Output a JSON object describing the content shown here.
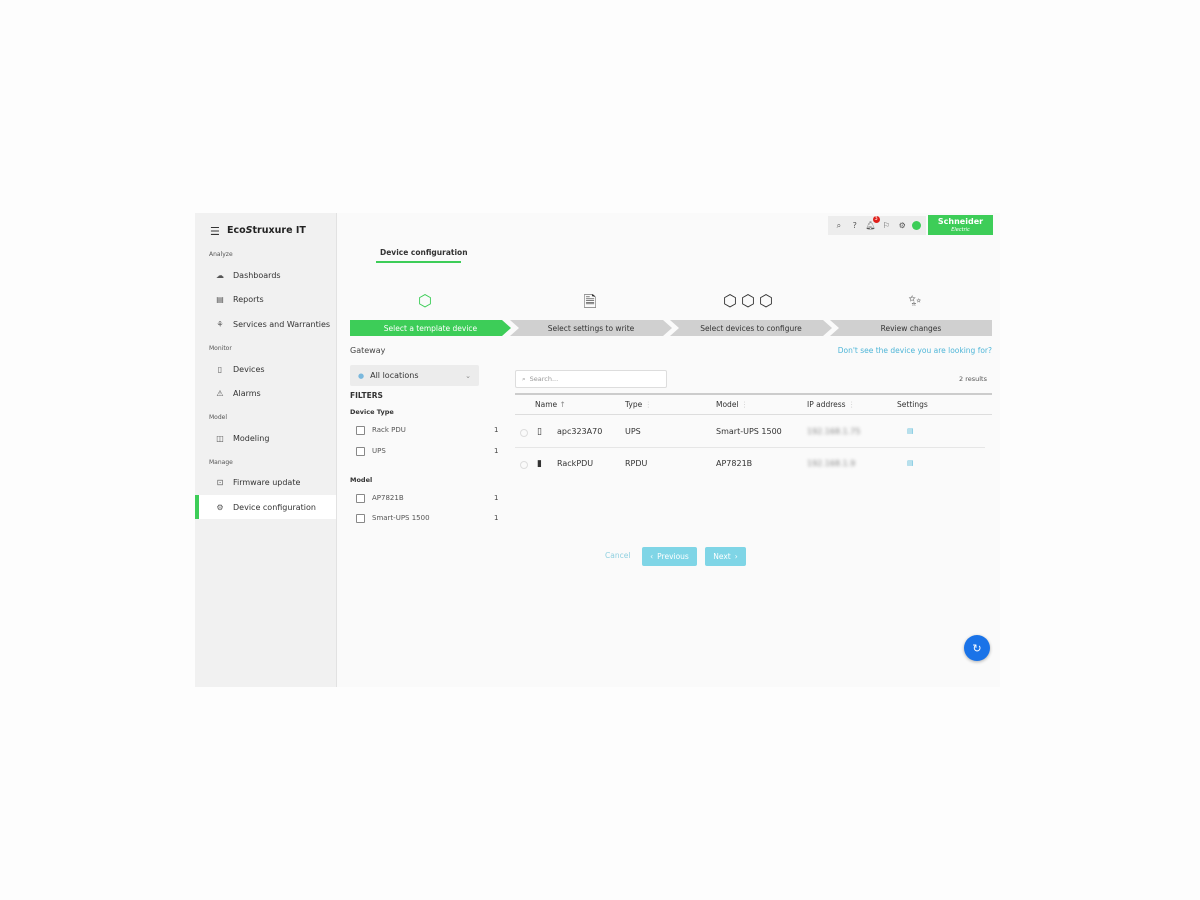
{
  "app": {
    "brand": "EcoStruxure IT",
    "brand_left": "Eco",
    "brand_right": "truxure IT",
    "logo": "Schneider",
    "logo_sub": "Electric",
    "accent": "#3dcd58",
    "link_color": "#4fb6d8"
  },
  "sidebar": {
    "sections": [
      {
        "label": "Analyze",
        "items": [
          {
            "label": "Dashboards",
            "icon": "cloud-icon"
          },
          {
            "label": "Reports",
            "icon": "report-icon"
          },
          {
            "label": "Services and Warranties",
            "icon": "services-icon"
          }
        ]
      },
      {
        "label": "Monitor",
        "items": [
          {
            "label": "Devices",
            "icon": "device-icon"
          },
          {
            "label": "Alarms",
            "icon": "warning-icon"
          }
        ]
      },
      {
        "label": "Model",
        "items": [
          {
            "label": "Modeling",
            "icon": "modeling-icon"
          }
        ]
      },
      {
        "label": "Manage",
        "items": [
          {
            "label": "Firmware update",
            "icon": "firmware-icon"
          },
          {
            "label": "Device configuration",
            "icon": "config-icon",
            "active": true
          }
        ]
      }
    ]
  },
  "topbar": {
    "notification_count": "3"
  },
  "page": {
    "tab": "Device configuration"
  },
  "steps": [
    {
      "label": "Select a template device",
      "active": true
    },
    {
      "label": "Select settings to write"
    },
    {
      "label": "Select devices to configure"
    },
    {
      "label": "Review changes"
    }
  ],
  "filters": {
    "gateway_label": "Gateway",
    "gateway_value": "All locations",
    "title": "FILTERS",
    "device_type": {
      "label": "Device Type",
      "options": [
        {
          "label": "Rack PDU",
          "count": "1"
        },
        {
          "label": "UPS",
          "count": "1"
        }
      ]
    },
    "model": {
      "label": "Model",
      "options": [
        {
          "label": "AP7821B",
          "count": "1"
        },
        {
          "label": "Smart-UPS 1500",
          "count": "1"
        }
      ]
    }
  },
  "table": {
    "help_link": "Don't see the device you are looking for?",
    "search_placeholder": "Search...",
    "results": "2 results",
    "columns": [
      "Name",
      "Type",
      "Model",
      "IP address",
      "Settings"
    ],
    "rows": [
      {
        "name": "apc323A70",
        "type": "UPS",
        "model": "Smart-UPS 1500",
        "ip": "192.168.1.75"
      },
      {
        "name": "RackPDU",
        "type": "RPDU",
        "model": "AP7821B",
        "ip": "192.168.1.9"
      }
    ]
  },
  "actions": {
    "cancel": "Cancel",
    "previous": "Previous",
    "next": "Next"
  }
}
